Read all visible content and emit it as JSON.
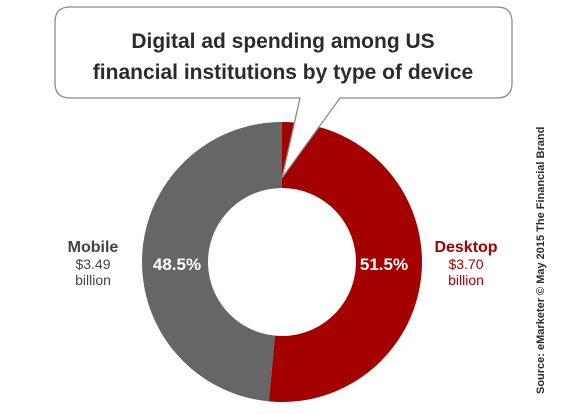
{
  "chart_data": {
    "type": "pie",
    "title": "Digital ad spending among US financial institutions by type of device",
    "title_lines": [
      "Digital ad spending among US",
      "financial institutions by type of device"
    ],
    "slices": [
      {
        "label": "Desktop",
        "percent": 51.5,
        "percent_label": "51.5%",
        "amount": "$3.70",
        "unit": "billion",
        "color": "#a50000"
      },
      {
        "label": "Mobile",
        "percent": 48.5,
        "percent_label": "48.5%",
        "amount": "$3.49",
        "unit": "billion",
        "color": "#666666"
      }
    ],
    "donut": true,
    "source": "Source: eMarketer © May 2015 The Financial Brand"
  },
  "colors": {
    "desktop": "#a50000",
    "mobile": "#666666",
    "mobile_text": "#444444",
    "bubble_border": "#8a8a8a",
    "background": "#ffffff"
  }
}
